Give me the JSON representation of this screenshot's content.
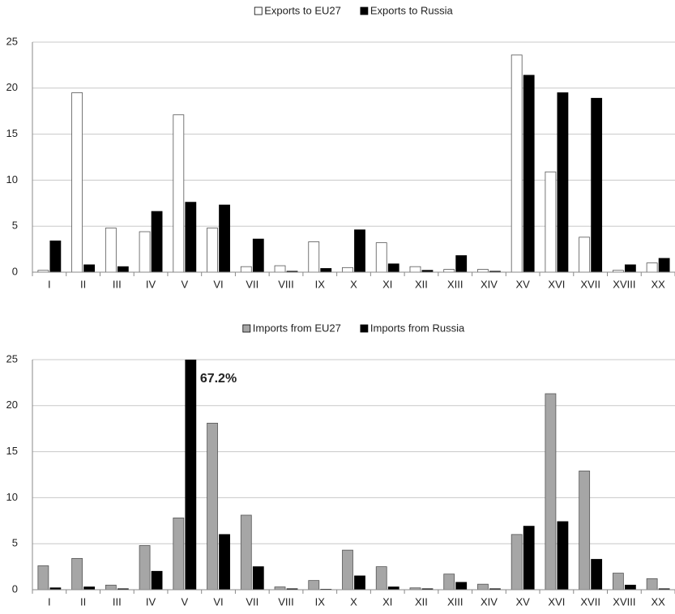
{
  "chart_data": [
    {
      "type": "bar",
      "categories": [
        "I",
        "II",
        "III",
        "IV",
        "V",
        "VI",
        "VII",
        "VIII",
        "IX",
        "X",
        "XI",
        "XII",
        "XIII",
        "XIV",
        "XV",
        "XVI",
        "XVII",
        "XVIII",
        "XX"
      ],
      "series": [
        {
          "name": "Exports to EU27",
          "color": "#ffffff",
          "values": [
            0.2,
            19.5,
            4.8,
            4.4,
            17.1,
            4.8,
            0.6,
            0.7,
            3.3,
            0.5,
            3.2,
            0.6,
            0.3,
            0.3,
            23.6,
            10.9,
            3.8,
            0.2,
            1.0
          ]
        },
        {
          "name": "Exports to Russia",
          "color": "#000000",
          "values": [
            3.4,
            0.8,
            0.6,
            6.6,
            7.6,
            7.3,
            3.6,
            0.1,
            0.4,
            4.6,
            0.9,
            0.2,
            1.8,
            0.1,
            21.4,
            19.5,
            18.9,
            0.8,
            1.5
          ]
        }
      ],
      "ylim": [
        0,
        25
      ],
      "yticks": [
        0,
        5,
        10,
        15,
        20,
        25
      ],
      "grid": true,
      "legend": "top"
    },
    {
      "type": "bar",
      "categories": [
        "I",
        "II",
        "III",
        "IV",
        "V",
        "VI",
        "VII",
        "VIII",
        "IX",
        "X",
        "XI",
        "XII",
        "XIII",
        "XIV",
        "XV",
        "XVI",
        "XVII",
        "XVIII",
        "XX"
      ],
      "series": [
        {
          "name": "Imports from EU27",
          "color": "#a6a6a6",
          "values": [
            2.6,
            3.4,
            0.5,
            4.8,
            7.8,
            18.1,
            8.1,
            0.3,
            1.0,
            4.3,
            2.5,
            0.2,
            1.7,
            0.6,
            6.0,
            21.3,
            12.9,
            1.8,
            1.2
          ]
        },
        {
          "name": "Imports from Russia",
          "color": "#000000",
          "values": [
            0.2,
            0.3,
            0.1,
            2.0,
            67.2,
            6.0,
            2.5,
            0.1,
            0.05,
            1.5,
            0.3,
            0.1,
            0.8,
            0.1,
            6.9,
            7.4,
            3.3,
            0.5,
            0.1
          ],
          "value_labels": [
            null,
            null,
            null,
            null,
            "67.2%",
            null,
            null,
            null,
            null,
            null,
            null,
            null,
            null,
            null,
            null,
            null,
            null,
            null,
            null
          ]
        }
      ],
      "ylim": [
        0,
        25
      ],
      "yticks": [
        0,
        5,
        10,
        15,
        20,
        25
      ],
      "grid": true,
      "legend": "top"
    }
  ]
}
